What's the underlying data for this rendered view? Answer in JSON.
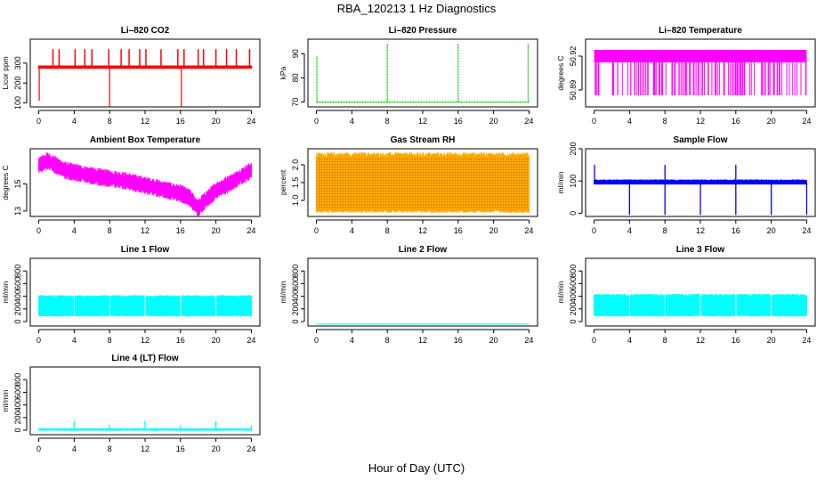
{
  "page": {
    "title": "RBA_120213  1 Hz Diagnostics",
    "xlabel": "Hour of Day (UTC)"
  },
  "colors": {
    "red": "#ff0000",
    "green": "#00cc00",
    "magenta": "#ff00ff",
    "orange": "#ffa500",
    "blue": "#0000ff",
    "cyan": "#00ffff"
  },
  "chart_data": [
    {
      "id": "co2",
      "type": "line",
      "title": "Li–820 CO2",
      "ylabel": "Licor ppm",
      "xlim": [
        0,
        24
      ],
      "ylim": [
        80,
        420
      ],
      "yticks": [
        100,
        200,
        300
      ],
      "xticks": [
        0,
        4,
        8,
        12,
        16,
        20,
        24
      ],
      "color": "red",
      "kind": "co2",
      "series": [
        {
          "baseline": 280,
          "noise": 8,
          "spikes_up": [
            1.6,
            2.3,
            4.1,
            5.2,
            6.0,
            7.9,
            9.3,
            10.2,
            11.4,
            12.1,
            13.8,
            15.7,
            16.4,
            18.0,
            18.6,
            20.0,
            21.2,
            22.3,
            23.8
          ],
          "spike_high": 370,
          "dips": [
            [
              0.05,
              110
            ],
            [
              8.0,
              0
            ],
            [
              16.1,
              0
            ]
          ]
        }
      ]
    },
    {
      "id": "pressure",
      "type": "line",
      "title": "Li–820 Pressure",
      "ylabel": "kPa",
      "xlim": [
        0,
        24
      ],
      "ylim": [
        68,
        96
      ],
      "yticks": [
        70,
        80,
        90
      ],
      "xticks": [
        0,
        4,
        8,
        12,
        16,
        20,
        24
      ],
      "color": "green",
      "kind": "pressure",
      "series": [
        {
          "baseline": 70,
          "spikes": [
            [
              0.05,
              89
            ],
            [
              8.0,
              94
            ],
            [
              16.0,
              94
            ],
            [
              23.9,
              94
            ]
          ]
        }
      ]
    },
    {
      "id": "licor_temp",
      "type": "line",
      "title": "Li–820 Temperature",
      "ylabel": "degrees C",
      "xlim": [
        0,
        24
      ],
      "ylim": [
        50.875,
        50.935
      ],
      "yticks": [
        50.89,
        50.92
      ],
      "ytick_labels": [
        "50.89",
        "50.92"
      ],
      "xticks": [
        0,
        4,
        8,
        12,
        16,
        20,
        24
      ],
      "color": "magenta",
      "kind": "licortemp",
      "series": [
        {
          "high": 50.92,
          "low": 50.89
        }
      ]
    },
    {
      "id": "box_temp",
      "type": "line",
      "title": "Ambient Box Temperature",
      "ylabel": "degrees C",
      "xlim": [
        0,
        24
      ],
      "ylim": [
        12.6,
        17.6
      ],
      "yticks": [
        13,
        15
      ],
      "xticks": [
        0,
        4,
        8,
        12,
        16,
        20,
        24
      ],
      "color": "magenta",
      "kind": "boxtemp",
      "series": [
        {
          "x": [
            0,
            1,
            3,
            6,
            10,
            14,
            16,
            17,
            18,
            18.5,
            20,
            22,
            24
          ],
          "y": [
            16.4,
            16.7,
            16.0,
            15.6,
            15.2,
            14.6,
            14.3,
            14.0,
            13.2,
            13.6,
            14.5,
            15.2,
            16.0
          ],
          "noise": 0.6
        }
      ]
    },
    {
      "id": "rh",
      "type": "line",
      "title": "Gas Stream RH",
      "ylabel": "percent",
      "xlim": [
        0,
        24
      ],
      "ylim": [
        0.55,
        2.45
      ],
      "yticks": [
        1.0,
        1.5,
        2.0
      ],
      "ytick_labels": [
        "1.0",
        "1.5",
        "2.0"
      ],
      "xticks": [
        0,
        4,
        8,
        12,
        16,
        20,
        24
      ],
      "color": "orange",
      "kind": "rh",
      "series": [
        {
          "low": 0.75,
          "high": 2.2
        }
      ]
    },
    {
      "id": "sample_flow",
      "type": "line",
      "title": "Sample Flow",
      "ylabel": "ml/min",
      "xlim": [
        0,
        24
      ],
      "ylim": [
        -10,
        200
      ],
      "yticks": [
        0,
        100,
        200
      ],
      "xticks": [
        0,
        4,
        8,
        12,
        16,
        20,
        24
      ],
      "color": "blue",
      "kind": "sampleflow",
      "series": [
        {
          "baseline": 95,
          "dips": [
            4,
            8,
            12,
            16,
            20,
            24
          ],
          "spikes": [
            [
              0.05,
              150
            ],
            [
              8.0,
              150
            ],
            [
              16.0,
              150
            ]
          ]
        }
      ]
    },
    {
      "id": "line1",
      "type": "line",
      "title": "Line 1 Flow",
      "ylabel": "ml/min",
      "xlim": [
        0,
        24
      ],
      "ylim": [
        -70,
        1000
      ],
      "yticks": [
        0,
        200,
        400,
        600,
        800
      ],
      "xticks": [
        0,
        4,
        8,
        12,
        16,
        20,
        24
      ],
      "color": "cyan",
      "kind": "lineflow",
      "series": [
        {
          "low": 80,
          "high": 420,
          "gaps": [
            4,
            8,
            12,
            16,
            20
          ]
        }
      ]
    },
    {
      "id": "line2",
      "type": "line",
      "title": "Line 2 Flow",
      "ylabel": "ml/min",
      "xlim": [
        0,
        24
      ],
      "ylim": [
        -70,
        1000
      ],
      "yticks": [
        0,
        200,
        400,
        600,
        800
      ],
      "xticks": [
        0,
        4,
        8,
        12,
        16,
        20,
        24
      ],
      "color": "cyan",
      "kind": "flat",
      "series": [
        {
          "value": -40
        }
      ]
    },
    {
      "id": "line3",
      "type": "line",
      "title": "Line 3 Flow",
      "ylabel": "ml/min",
      "xlim": [
        0,
        24
      ],
      "ylim": [
        -70,
        1000
      ],
      "yticks": [
        0,
        200,
        400,
        600,
        800
      ],
      "xticks": [
        0,
        4,
        8,
        12,
        16,
        20,
        24
      ],
      "color": "cyan",
      "kind": "lineflow",
      "series": [
        {
          "low": 80,
          "high": 440,
          "gaps": [
            4,
            8,
            12,
            16,
            20
          ]
        }
      ]
    },
    {
      "id": "line4",
      "type": "line",
      "title": "Line 4 (LT) Flow",
      "ylabel": "ml/min",
      "xlim": [
        0,
        24
      ],
      "ylim": [
        -70,
        1000
      ],
      "yticks": [
        0,
        200,
        400,
        600,
        800
      ],
      "xticks": [
        0,
        4,
        8,
        12,
        16,
        20,
        24
      ],
      "color": "cyan",
      "kind": "lowflow",
      "series": [
        {
          "baseline": 20,
          "spikes": [
            [
              4.0,
              150
            ],
            [
              8.0,
              90
            ],
            [
              12.0,
              150
            ],
            [
              16.0,
              80
            ],
            [
              20.0,
              150
            ],
            [
              24.0,
              80
            ]
          ]
        }
      ]
    }
  ]
}
